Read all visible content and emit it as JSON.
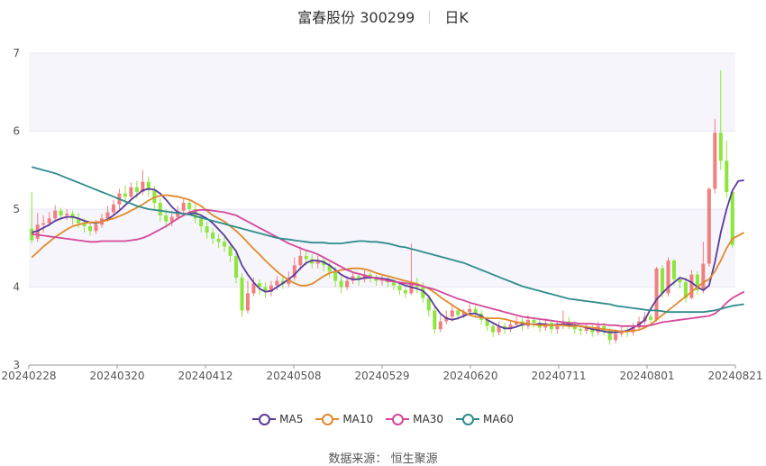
{
  "title": {
    "name": "富春股份 300299",
    "period": "日K"
  },
  "source": {
    "label": "数据来源：",
    "value": "恒生聚源"
  },
  "legend": [
    {
      "name": "MA5",
      "color": "#5b3a9b"
    },
    {
      "name": "MA10",
      "color": "#e08a2b"
    },
    {
      "name": "MA30",
      "color": "#d4489a"
    },
    {
      "name": "MA60",
      "color": "#2f8c8c"
    }
  ],
  "colors": {
    "up": "#f08080",
    "down": "#8ce63c",
    "grid": "#e8e8f4",
    "band": "#f5f5fb"
  },
  "chart_data": {
    "type": "candlestick",
    "title": "富春股份 300299 日K",
    "x_tick_labels": [
      "20240228",
      "20240320",
      "20240412",
      "20240508",
      "20240529",
      "20240620",
      "20240711",
      "20240801",
      "20240821"
    ],
    "ylim": [
      3,
      7
    ],
    "y_ticks": [
      3,
      4,
      5,
      6,
      7
    ],
    "ohlc": [
      [
        4.75,
        4.6,
        5.22,
        4.56
      ],
      [
        4.62,
        4.8,
        4.95,
        4.58
      ],
      [
        4.8,
        4.82,
        4.92,
        4.7
      ],
      [
        4.82,
        4.88,
        4.96,
        4.78
      ],
      [
        4.88,
        4.98,
        5.05,
        4.84
      ],
      [
        4.98,
        4.92,
        5.02,
        4.86
      ],
      [
        4.92,
        4.94,
        5.0,
        4.86
      ],
      [
        4.94,
        4.88,
        4.98,
        4.8
      ],
      [
        4.88,
        4.82,
        4.95,
        4.76
      ],
      [
        4.82,
        4.78,
        4.88,
        4.7
      ],
      [
        4.78,
        4.72,
        4.84,
        4.66
      ],
      [
        4.72,
        4.8,
        4.86,
        4.68
      ],
      [
        4.8,
        4.88,
        4.94,
        4.76
      ],
      [
        4.88,
        4.96,
        5.04,
        4.84
      ],
      [
        4.96,
        5.06,
        5.12,
        4.92
      ],
      [
        5.06,
        5.2,
        5.26,
        5.0
      ],
      [
        5.2,
        5.16,
        5.3,
        5.08
      ],
      [
        5.16,
        5.28,
        5.34,
        5.1
      ],
      [
        5.28,
        5.22,
        5.36,
        5.14
      ],
      [
        5.22,
        5.35,
        5.5,
        5.18
      ],
      [
        5.35,
        5.24,
        5.42,
        5.16
      ],
      [
        5.24,
        5.08,
        5.3,
        5.0
      ],
      [
        5.08,
        4.92,
        5.14,
        4.84
      ],
      [
        4.92,
        4.84,
        5.0,
        4.76
      ],
      [
        4.84,
        4.9,
        4.98,
        4.78
      ],
      [
        4.9,
        4.98,
        5.04,
        4.86
      ],
      [
        4.98,
        5.08,
        5.14,
        4.92
      ],
      [
        5.08,
        5.0,
        5.12,
        4.94
      ],
      [
        5.0,
        4.88,
        5.06,
        4.82
      ],
      [
        4.88,
        4.78,
        4.94,
        4.7
      ],
      [
        4.78,
        4.7,
        4.84,
        4.62
      ],
      [
        4.7,
        4.62,
        4.76,
        4.55
      ],
      [
        4.62,
        4.58,
        4.68,
        4.5
      ],
      [
        4.58,
        4.52,
        4.66,
        4.45
      ],
      [
        4.52,
        4.4,
        4.58,
        4.32
      ],
      [
        4.4,
        4.12,
        4.46,
        4.05
      ],
      [
        4.12,
        3.7,
        4.18,
        3.62
      ],
      [
        3.7,
        3.92,
        4.08,
        3.66
      ],
      [
        3.92,
        4.05,
        4.12,
        3.88
      ],
      [
        4.05,
        4.0,
        4.1,
        3.9
      ],
      [
        4.0,
        3.94,
        4.06,
        3.86
      ],
      [
        3.94,
        4.02,
        4.08,
        3.88
      ],
      [
        4.02,
        4.08,
        4.14,
        3.96
      ],
      [
        4.08,
        4.04,
        4.14,
        3.98
      ],
      [
        4.04,
        4.12,
        4.2,
        4.0
      ],
      [
        4.12,
        4.28,
        4.38,
        4.08
      ],
      [
        4.28,
        4.4,
        4.52,
        4.22
      ],
      [
        4.4,
        4.36,
        4.48,
        4.28
      ],
      [
        4.36,
        4.3,
        4.42,
        4.24
      ],
      [
        4.3,
        4.34,
        4.4,
        4.24
      ],
      [
        4.34,
        4.28,
        4.38,
        4.2
      ],
      [
        4.28,
        4.2,
        4.32,
        4.12
      ],
      [
        4.2,
        4.08,
        4.26,
        4.0
      ],
      [
        4.08,
        4.0,
        4.14,
        3.92
      ],
      [
        4.0,
        4.08,
        4.14,
        3.96
      ],
      [
        4.08,
        4.14,
        4.2,
        4.04
      ],
      [
        4.14,
        4.1,
        4.18,
        4.02
      ],
      [
        4.1,
        4.16,
        4.22,
        4.06
      ],
      [
        4.16,
        4.12,
        4.2,
        4.06
      ],
      [
        4.12,
        4.08,
        4.16,
        4.02
      ],
      [
        4.08,
        4.1,
        4.16,
        4.02
      ],
      [
        4.1,
        4.06,
        4.14,
        4.0
      ],
      [
        4.06,
        4.02,
        4.1,
        3.96
      ],
      [
        4.02,
        3.96,
        4.06,
        3.9
      ],
      [
        3.96,
        3.92,
        4.0,
        3.86
      ],
      [
        3.92,
        4.04,
        4.56,
        3.9
      ],
      [
        4.04,
        4.0,
        4.12,
        3.92
      ],
      [
        4.0,
        3.86,
        4.06,
        3.8
      ],
      [
        3.86,
        3.7,
        3.9,
        3.62
      ],
      [
        3.7,
        3.46,
        3.76,
        3.4
      ],
      [
        3.46,
        3.56,
        3.64,
        3.42
      ],
      [
        3.56,
        3.62,
        3.7,
        3.52
      ],
      [
        3.62,
        3.7,
        3.76,
        3.56
      ],
      [
        3.7,
        3.64,
        3.74,
        3.58
      ],
      [
        3.64,
        3.68,
        3.72,
        3.6
      ],
      [
        3.68,
        3.72,
        3.78,
        3.64
      ],
      [
        3.72,
        3.66,
        3.76,
        3.6
      ],
      [
        3.66,
        3.58,
        3.7,
        3.52
      ],
      [
        3.58,
        3.5,
        3.62,
        3.44
      ],
      [
        3.5,
        3.42,
        3.54,
        3.36
      ],
      [
        3.42,
        3.5,
        3.56,
        3.38
      ],
      [
        3.5,
        3.46,
        3.54,
        3.4
      ],
      [
        3.46,
        3.52,
        3.58,
        3.42
      ],
      [
        3.52,
        3.56,
        3.62,
        3.48
      ],
      [
        3.56,
        3.5,
        3.6,
        3.44
      ],
      [
        3.5,
        3.58,
        3.64,
        3.46
      ],
      [
        3.58,
        3.54,
        3.62,
        3.48
      ],
      [
        3.54,
        3.48,
        3.58,
        3.42
      ],
      [
        3.48,
        3.54,
        3.6,
        3.44
      ],
      [
        3.54,
        3.46,
        3.58,
        3.4
      ],
      [
        3.46,
        3.5,
        3.56,
        3.4
      ],
      [
        3.5,
        3.56,
        3.7,
        3.46
      ],
      [
        3.56,
        3.52,
        3.62,
        3.46
      ],
      [
        3.52,
        3.46,
        3.56,
        3.4
      ],
      [
        3.46,
        3.44,
        3.5,
        3.38
      ],
      [
        3.44,
        3.48,
        3.54,
        3.4
      ],
      [
        3.48,
        3.42,
        3.52,
        3.36
      ],
      [
        3.42,
        3.5,
        3.56,
        3.38
      ],
      [
        3.5,
        3.44,
        3.54,
        3.38
      ],
      [
        3.44,
        3.32,
        3.48,
        3.26
      ],
      [
        3.32,
        3.4,
        3.46,
        3.28
      ],
      [
        3.4,
        3.44,
        3.5,
        3.36
      ],
      [
        3.44,
        3.42,
        3.48,
        3.36
      ],
      [
        3.42,
        3.48,
        3.54,
        3.38
      ],
      [
        3.48,
        3.56,
        3.62,
        3.44
      ],
      [
        3.56,
        3.62,
        3.68,
        3.52
      ],
      [
        3.62,
        3.58,
        3.66,
        3.54
      ],
      [
        3.58,
        4.24,
        4.26,
        3.56
      ],
      [
        4.24,
        3.92,
        4.28,
        3.86
      ],
      [
        3.92,
        4.34,
        4.38,
        3.88
      ],
      [
        4.34,
        4.1,
        4.36,
        4.02
      ],
      [
        4.1,
        4.06,
        4.14,
        3.98
      ],
      [
        4.06,
        3.86,
        4.12,
        3.8
      ],
      [
        3.86,
        4.16,
        4.22,
        3.84
      ],
      [
        4.16,
        3.96,
        4.2,
        3.9
      ],
      [
        3.96,
        4.3,
        4.58,
        3.92
      ],
      [
        4.3,
        5.26,
        5.28,
        4.26
      ],
      [
        5.26,
        5.98,
        6.16,
        5.2
      ],
      [
        5.98,
        5.62,
        6.78,
        5.5
      ],
      [
        5.62,
        5.22,
        5.88,
        5.14
      ],
      [
        5.22,
        4.54,
        5.12,
        4.5
      ]
    ],
    "series": [
      {
        "name": "MA5",
        "values": [
          4.7,
          4.72,
          4.76,
          4.8,
          4.85,
          4.88,
          4.9,
          4.9,
          4.88,
          4.85,
          4.83,
          4.82,
          4.84,
          4.87,
          4.92,
          4.98,
          5.05,
          5.12,
          5.18,
          5.24,
          5.26,
          5.25,
          5.2,
          5.12,
          5.03,
          4.96,
          4.94,
          4.94,
          4.95,
          4.92,
          4.88,
          4.82,
          4.74,
          4.66,
          4.56,
          4.46,
          4.28,
          4.16,
          4.06,
          3.98,
          3.94,
          3.95,
          4.0,
          4.05,
          4.1,
          4.16,
          4.24,
          4.31,
          4.34,
          4.34,
          4.32,
          4.28,
          4.22,
          4.16,
          4.12,
          4.1,
          4.1,
          4.12,
          4.12,
          4.12,
          4.11,
          4.1,
          4.08,
          4.05,
          4.02,
          4.0,
          3.98,
          3.95,
          3.88,
          3.76,
          3.66,
          3.6,
          3.58,
          3.6,
          3.63,
          3.66,
          3.66,
          3.63,
          3.58,
          3.54,
          3.5,
          3.47,
          3.47,
          3.49,
          3.52,
          3.53,
          3.52,
          3.53,
          3.52,
          3.51,
          3.52,
          3.52,
          3.52,
          3.51,
          3.5,
          3.48,
          3.46,
          3.45,
          3.43,
          3.42,
          3.42,
          3.43,
          3.44,
          3.48,
          3.52,
          3.58,
          3.72,
          3.84,
          3.92,
          4.0,
          4.06,
          4.12,
          4.1,
          4.06,
          4.0,
          3.96,
          4.02,
          4.32,
          4.7,
          5.0,
          5.24,
          5.36,
          5.37
        ]
      },
      {
        "name": "MA10",
        "values": [
          4.38,
          4.45,
          4.52,
          4.58,
          4.64,
          4.69,
          4.74,
          4.78,
          4.8,
          4.82,
          4.83,
          4.83,
          4.84,
          4.86,
          4.88,
          4.91,
          4.94,
          4.98,
          5.02,
          5.06,
          5.11,
          5.15,
          5.17,
          5.18,
          5.17,
          5.16,
          5.14,
          5.12,
          5.08,
          5.04,
          4.98,
          4.92,
          4.88,
          4.84,
          4.78,
          4.72,
          4.65,
          4.57,
          4.49,
          4.42,
          4.34,
          4.27,
          4.2,
          4.14,
          4.09,
          4.05,
          4.02,
          4.02,
          4.04,
          4.09,
          4.14,
          4.18,
          4.2,
          4.22,
          4.23,
          4.24,
          4.24,
          4.23,
          4.21,
          4.18,
          4.16,
          4.14,
          4.12,
          4.1,
          4.08,
          4.06,
          4.04,
          4.01,
          3.98,
          3.93,
          3.87,
          3.82,
          3.77,
          3.72,
          3.68,
          3.64,
          3.62,
          3.61,
          3.6,
          3.6,
          3.6,
          3.59,
          3.57,
          3.55,
          3.54,
          3.53,
          3.52,
          3.51,
          3.51,
          3.51,
          3.51,
          3.51,
          3.5,
          3.5,
          3.5,
          3.49,
          3.48,
          3.47,
          3.46,
          3.45,
          3.44,
          3.43,
          3.43,
          3.44,
          3.45,
          3.48,
          3.52,
          3.58,
          3.64,
          3.7,
          3.76,
          3.82,
          3.88,
          3.94,
          4.0,
          4.06,
          4.1,
          4.2,
          4.34,
          4.5,
          4.62,
          4.66,
          4.7
        ]
      },
      {
        "name": "MA30",
        "values": [
          4.68,
          4.67,
          4.66,
          4.65,
          4.64,
          4.63,
          4.62,
          4.61,
          4.6,
          4.59,
          4.58,
          4.58,
          4.59,
          4.59,
          4.59,
          4.59,
          4.59,
          4.6,
          4.61,
          4.63,
          4.66,
          4.7,
          4.74,
          4.78,
          4.83,
          4.88,
          4.92,
          4.96,
          4.98,
          4.99,
          4.99,
          4.98,
          4.97,
          4.96,
          4.94,
          4.92,
          4.88,
          4.84,
          4.8,
          4.76,
          4.72,
          4.68,
          4.64,
          4.6,
          4.56,
          4.53,
          4.5,
          4.47,
          4.45,
          4.42,
          4.38,
          4.34,
          4.3,
          4.26,
          4.22,
          4.19,
          4.17,
          4.15,
          4.13,
          4.11,
          4.1,
          4.08,
          4.07,
          4.06,
          4.05,
          4.04,
          4.03,
          4.01,
          3.99,
          3.97,
          3.94,
          3.91,
          3.88,
          3.85,
          3.83,
          3.8,
          3.78,
          3.76,
          3.74,
          3.72,
          3.7,
          3.68,
          3.66,
          3.64,
          3.62,
          3.61,
          3.6,
          3.59,
          3.58,
          3.57,
          3.56,
          3.55,
          3.54,
          3.54,
          3.53,
          3.53,
          3.53,
          3.52,
          3.52,
          3.51,
          3.51,
          3.5,
          3.5,
          3.5,
          3.5,
          3.5,
          3.51,
          3.53,
          3.55,
          3.56,
          3.57,
          3.58,
          3.59,
          3.6,
          3.61,
          3.62,
          3.63,
          3.66,
          3.72,
          3.8,
          3.86,
          3.9,
          3.94
        ]
      },
      {
        "name": "MA60",
        "values": [
          5.54,
          5.52,
          5.5,
          5.48,
          5.46,
          5.43,
          5.4,
          5.37,
          5.34,
          5.31,
          5.28,
          5.25,
          5.22,
          5.19,
          5.16,
          5.13,
          5.1,
          5.07,
          5.04,
          5.02,
          5.0,
          4.99,
          4.98,
          4.97,
          4.96,
          4.95,
          4.94,
          4.93,
          4.91,
          4.89,
          4.87,
          4.85,
          4.83,
          4.81,
          4.79,
          4.77,
          4.75,
          4.73,
          4.71,
          4.69,
          4.67,
          4.65,
          4.63,
          4.62,
          4.61,
          4.6,
          4.59,
          4.58,
          4.57,
          4.57,
          4.57,
          4.56,
          4.56,
          4.56,
          4.57,
          4.58,
          4.59,
          4.59,
          4.58,
          4.58,
          4.57,
          4.56,
          4.54,
          4.52,
          4.51,
          4.49,
          4.47,
          4.45,
          4.43,
          4.41,
          4.39,
          4.37,
          4.35,
          4.33,
          4.31,
          4.28,
          4.25,
          4.22,
          4.19,
          4.16,
          4.13,
          4.1,
          4.07,
          4.04,
          4.01,
          3.99,
          3.97,
          3.95,
          3.93,
          3.91,
          3.89,
          3.87,
          3.85,
          3.84,
          3.83,
          3.82,
          3.81,
          3.8,
          3.79,
          3.78,
          3.76,
          3.75,
          3.74,
          3.73,
          3.72,
          3.71,
          3.7,
          3.7,
          3.69,
          3.68,
          3.68,
          3.68,
          3.68,
          3.68,
          3.68,
          3.68,
          3.69,
          3.7,
          3.72,
          3.74,
          3.76,
          3.77,
          3.78
        ]
      }
    ],
    "legend_position": "bottom",
    "grid": true
  }
}
